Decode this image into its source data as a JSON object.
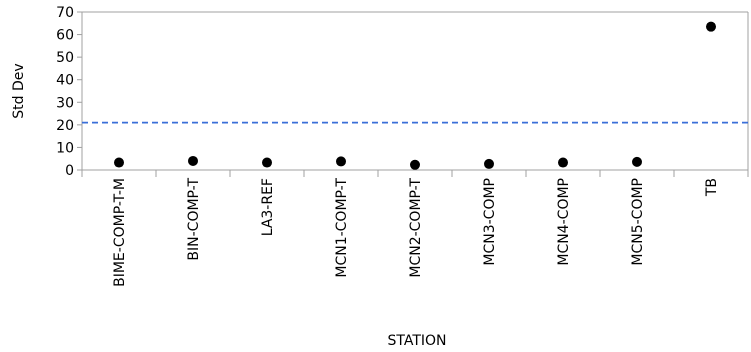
{
  "chart_data": {
    "type": "scatter",
    "title": "",
    "xlabel": "STATION",
    "ylabel": "Std Dev",
    "ylim": [
      0,
      70
    ],
    "yticks": [
      0,
      10,
      20,
      30,
      40,
      50,
      60,
      70
    ],
    "grid": false,
    "categories": [
      "BIME-COMP-T-M",
      "BIN-COMP-T",
      "LA3-REF",
      "MCN1-COMP-T",
      "MCN2-COMP-T",
      "MCN3-COMP",
      "MCN4-COMP",
      "MCN5-COMP",
      "TB"
    ],
    "values": [
      3.3,
      4.0,
      3.3,
      3.8,
      2.3,
      2.7,
      3.3,
      3.6,
      63.5
    ],
    "reference_line": {
      "value": 21,
      "style": "dashed",
      "color": "#3a6fd8"
    },
    "point_color": "#000000",
    "axis_color": "#a0a0a0"
  }
}
